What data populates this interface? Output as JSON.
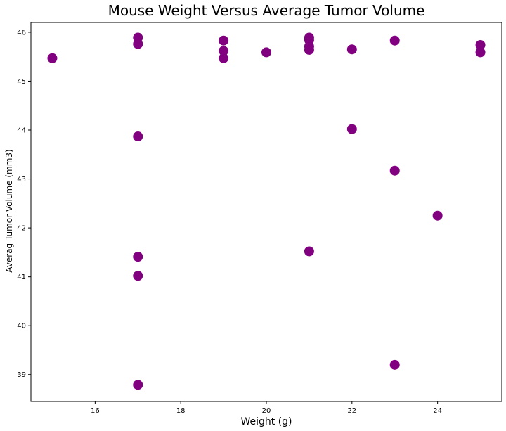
{
  "chart_data": {
    "type": "scatter",
    "title": "Mouse Weight Versus Average Tumor Volume",
    "xlabel": "Weight (g)",
    "ylabel": "Averag Tumor Volume (mm3)",
    "xlim": [
      14.5,
      25.5
    ],
    "ylim": [
      38.45,
      46.2
    ],
    "xticks": [
      16,
      18,
      20,
      22,
      24
    ],
    "yticks": [
      39,
      40,
      41,
      42,
      43,
      44,
      45,
      46
    ],
    "grid": false,
    "marker_color": "#800080",
    "points": [
      {
        "x": 15,
        "y": 45.47
      },
      {
        "x": 17,
        "y": 45.89
      },
      {
        "x": 17,
        "y": 45.76
      },
      {
        "x": 17,
        "y": 43.87
      },
      {
        "x": 17,
        "y": 41.41
      },
      {
        "x": 17,
        "y": 41.02
      },
      {
        "x": 17,
        "y": 38.79
      },
      {
        "x": 19,
        "y": 45.83
      },
      {
        "x": 19,
        "y": 45.62
      },
      {
        "x": 19,
        "y": 45.47
      },
      {
        "x": 20,
        "y": 45.59
      },
      {
        "x": 21,
        "y": 45.89
      },
      {
        "x": 21,
        "y": 45.84
      },
      {
        "x": 21,
        "y": 45.71
      },
      {
        "x": 21,
        "y": 45.64
      },
      {
        "x": 21,
        "y": 41.52
      },
      {
        "x": 22,
        "y": 45.65
      },
      {
        "x": 22,
        "y": 44.02
      },
      {
        "x": 23,
        "y": 45.83
      },
      {
        "x": 23,
        "y": 43.17
      },
      {
        "x": 23,
        "y": 39.2
      },
      {
        "x": 24,
        "y": 42.25
      },
      {
        "x": 25,
        "y": 45.74
      },
      {
        "x": 25,
        "y": 45.59
      }
    ]
  }
}
